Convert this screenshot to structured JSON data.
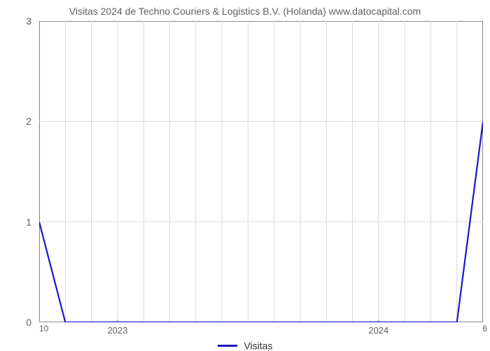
{
  "title": "Visitas 2024 de Techno Couriers & Logistics B.V. (Holanda) www.datocapital.com",
  "chart": {
    "type": "line",
    "background_color": "#ffffff",
    "grid_color": "#d9d9d9",
    "axis_color": "#666666",
    "title_color": "#606060",
    "tick_color": "#606060",
    "title_fontsize": 14,
    "tick_fontsize": 14,
    "ylim": [
      0,
      3
    ],
    "yticks": [
      0,
      1,
      2,
      3
    ],
    "xlim": [
      0,
      17
    ],
    "xticks_major": [
      {
        "pos": 3,
        "label": "2023"
      },
      {
        "pos": 13,
        "label": "2024"
      }
    ],
    "x_minor_step": 1,
    "corner_left": "10",
    "corner_right": "6",
    "series": {
      "name": "Visitas",
      "color": "#1818c8",
      "line_width": 2.2,
      "points": [
        {
          "x": 0,
          "y": 1.0
        },
        {
          "x": 1,
          "y": 0.0
        },
        {
          "x": 2,
          "y": 0.0
        },
        {
          "x": 3,
          "y": 0.0
        },
        {
          "x": 4,
          "y": 0.0
        },
        {
          "x": 5,
          "y": 0.0
        },
        {
          "x": 6,
          "y": 0.0
        },
        {
          "x": 7,
          "y": 0.0
        },
        {
          "x": 8,
          "y": 0.0
        },
        {
          "x": 9,
          "y": 0.0
        },
        {
          "x": 10,
          "y": 0.0
        },
        {
          "x": 11,
          "y": 0.0
        },
        {
          "x": 12,
          "y": 0.0
        },
        {
          "x": 13,
          "y": 0.0
        },
        {
          "x": 14,
          "y": 0.0
        },
        {
          "x": 15,
          "y": 0.0
        },
        {
          "x": 16,
          "y": 0.0
        },
        {
          "x": 17,
          "y": 2.0
        }
      ]
    },
    "legend_label": "Visitas"
  }
}
